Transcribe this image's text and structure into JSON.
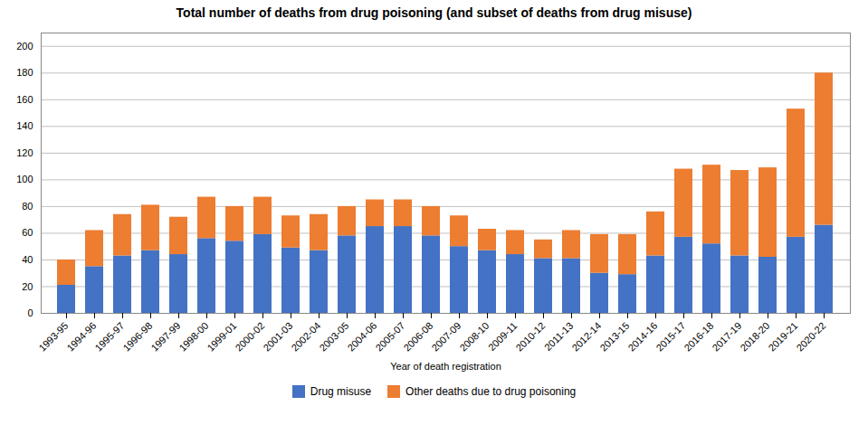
{
  "chart_data": {
    "type": "bar",
    "stacked": true,
    "title": "Total number of deaths from drug poisoning (and subset of deaths from drug misuse)",
    "xlabel": "Year of death registration",
    "categories": [
      "1993-95",
      "1994-96",
      "1995-97",
      "1996-98",
      "1997-99",
      "1998-00",
      "1999-01",
      "2000-02",
      "2001-03",
      "2002-04",
      "2003-05",
      "2004-06",
      "2005-07",
      "2006-08",
      "2007-09",
      "2008-10",
      "2009-11",
      "2010-12",
      "2011-13",
      "2012-14",
      "2013-15",
      "2014-16",
      "2015-17",
      "2016-18",
      "2017-19",
      "2018-20",
      "2019-21",
      "2020-22"
    ],
    "series": [
      {
        "name": "Drug misuse",
        "color": "#4472c4",
        "values": [
          21,
          35,
          43,
          47,
          44,
          56,
          54,
          59,
          49,
          47,
          58,
          65,
          65,
          58,
          50,
          47,
          44,
          41,
          41,
          30,
          29,
          43,
          57,
          52,
          43,
          42,
          57,
          66
        ]
      },
      {
        "name": "Other deaths due to drug poisoning",
        "color": "#ed7d31",
        "values": [
          19,
          27,
          31,
          34,
          28,
          31,
          26,
          28,
          24,
          27,
          22,
          20,
          20,
          22,
          23,
          16,
          18,
          14,
          21,
          29,
          30,
          33,
          51,
          59,
          64,
          67,
          96,
          114
        ]
      }
    ],
    "ylim": [
      0,
      210
    ],
    "yticks": [
      0,
      20,
      40,
      60,
      80,
      100,
      120,
      140,
      160,
      180,
      200
    ],
    "grid": true,
    "legend": "bottom"
  }
}
